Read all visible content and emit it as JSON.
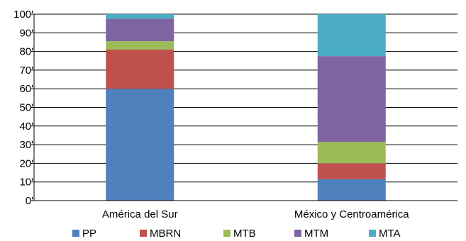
{
  "chart_data": {
    "type": "bar",
    "stacked": true,
    "title": "",
    "xlabel": "",
    "ylabel": "",
    "ylim": [
      0,
      100
    ],
    "yticks": [
      "0'",
      "10'",
      "20'",
      "30'",
      "40'",
      "50'",
      "60'",
      "70'",
      "80'",
      "90'",
      "100'"
    ],
    "categories": [
      "América del Sur",
      "México y Centroamérica"
    ],
    "series": [
      {
        "name": "PP",
        "color": "#4F81BD",
        "values": [
          60,
          11.5
        ]
      },
      {
        "name": "MBRN",
        "color": "#C0504D",
        "values": [
          21,
          8.5
        ]
      },
      {
        "name": "MTB",
        "color": "#9BBB59",
        "values": [
          4.5,
          11.5
        ]
      },
      {
        "name": "MTM",
        "color": "#8064A2",
        "values": [
          12,
          46
        ]
      },
      {
        "name": "MTA",
        "color": "#4BACC6",
        "values": [
          2.5,
          22.5
        ]
      }
    ],
    "grid": true,
    "legend_position": "bottom"
  }
}
